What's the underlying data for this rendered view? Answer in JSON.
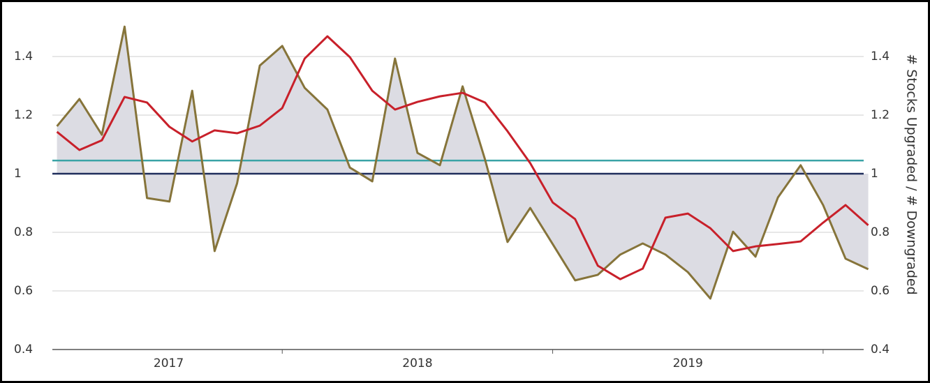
{
  "chart_data": {
    "type": "line",
    "y2_label": "# Stocks Upgraded / # Downgraded",
    "x": [
      2017.167,
      2017.25,
      2017.333,
      2017.417,
      2017.5,
      2017.583,
      2017.667,
      2017.75,
      2017.833,
      2017.917,
      2018.0,
      2018.083,
      2018.167,
      2018.25,
      2018.333,
      2018.417,
      2018.5,
      2018.583,
      2018.667,
      2018.75,
      2018.833,
      2018.917,
      2019.0,
      2019.083,
      2019.167,
      2019.25,
      2019.333,
      2019.417,
      2019.5,
      2019.583,
      2019.667,
      2019.75,
      2019.833,
      2019.917,
      2020.0,
      2020.083,
      2020.167
    ],
    "xlim": [
      2017.15,
      2020.15
    ],
    "xticks": [
      {
        "value": 2017.58,
        "label": "2017"
      },
      {
        "value": 2018.5,
        "label": "2018"
      },
      {
        "value": 2019.5,
        "label": "2019"
      }
    ],
    "xtick_marks": [
      2018,
      2019,
      2020
    ],
    "series": [
      {
        "color": "#86743a",
        "fill": "#dcdce3",
        "values": [
          1.162,
          1.255,
          1.133,
          1.502,
          0.917,
          0.905,
          1.283,
          0.736,
          0.967,
          1.369,
          1.436,
          1.293,
          1.219,
          1.021,
          0.974,
          1.393,
          1.071,
          1.029,
          1.298,
          1.048,
          0.767,
          0.883,
          0.76,
          0.636,
          0.655,
          0.724,
          0.762,
          0.724,
          0.664,
          0.574,
          0.802,
          0.717,
          0.919,
          1.029,
          0.893,
          0.71,
          0.674
        ]
      },
      {
        "color": "#c8202a",
        "values": [
          1.143,
          1.081,
          1.114,
          1.262,
          1.243,
          1.16,
          1.11,
          1.148,
          1.138,
          1.164,
          1.224,
          1.393,
          1.469,
          1.398,
          1.283,
          1.219,
          1.245,
          1.264,
          1.276,
          1.243,
          1.145,
          1.036,
          0.902,
          0.845,
          0.686,
          0.64,
          0.676,
          0.85,
          0.864,
          0.814,
          0.736,
          0.752,
          0.76,
          0.769,
          0.833,
          0.893,
          0.824
        ]
      }
    ],
    "reference_lines": [
      {
        "value": 1.045,
        "color": "#3aa3a6"
      },
      {
        "value": 1.0,
        "color": "#1f2d5c"
      }
    ],
    "ylim": [
      0.4,
      1.5
    ],
    "yticks": [
      0.4,
      0.6,
      0.8,
      1.0,
      1.2,
      1.4
    ],
    "y2lim": [
      0.4,
      1.5
    ],
    "y2ticks": [
      0.4,
      0.6,
      0.8,
      1.0,
      1.2,
      1.4
    ],
    "grid": true
  }
}
